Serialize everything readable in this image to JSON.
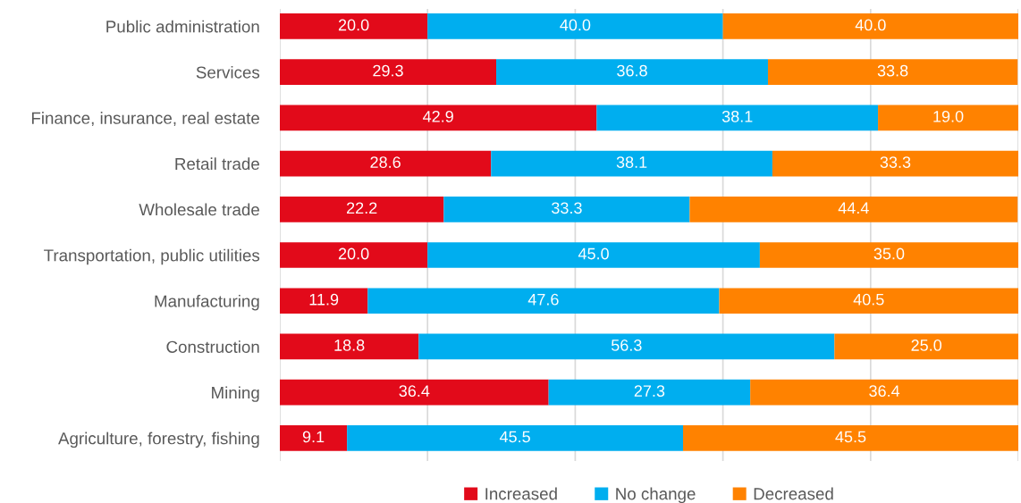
{
  "chart_data": {
    "type": "bar",
    "orientation": "horizontal",
    "stacked": true,
    "categories": [
      "Public administration",
      "Services",
      "Finance, insurance, real estate",
      "Retail trade",
      "Wholesale trade",
      "Transportation, public utilities",
      "Manufacturing",
      "Construction",
      "Mining",
      "Agriculture, forestry, fishing"
    ],
    "series": [
      {
        "name": "Increased",
        "color": "#e20a1a",
        "values": [
          20.0,
          29.3,
          42.9,
          28.6,
          22.2,
          20.0,
          11.9,
          18.8,
          36.4,
          9.1
        ],
        "value_labels": [
          "20.0",
          "29.3",
          "42.9",
          "28.6",
          "22.2",
          "20.0",
          "11.9",
          "18.8",
          "36.4",
          "9.1"
        ]
      },
      {
        "name": "No change",
        "color": "#00aeef",
        "values": [
          40.0,
          36.8,
          38.1,
          38.1,
          33.3,
          45.0,
          47.6,
          56.3,
          27.3,
          45.5
        ],
        "value_labels": [
          "40.0",
          "36.8",
          "38.1",
          "38.1",
          "33.3",
          "45.0",
          "47.6",
          "56.3",
          "27.3",
          "45.5"
        ]
      },
      {
        "name": "Decreased",
        "color": "#ff8200",
        "values": [
          40.0,
          33.8,
          19.0,
          33.3,
          44.4,
          35.0,
          40.5,
          25.0,
          36.4,
          45.5
        ],
        "value_labels": [
          "40.0",
          "33.8",
          "19.0",
          "33.3",
          "44.4",
          "35.0",
          "40.5",
          "25.0",
          "36.4",
          "45.5"
        ]
      }
    ],
    "xlim": [
      0,
      100
    ],
    "xticks": [
      {
        "value": 0,
        "label": null
      },
      {
        "value": 20,
        "label": null
      },
      {
        "value": 40,
        "label": null
      },
      {
        "value": 60,
        "label": null
      },
      {
        "value": 80,
        "label": null
      },
      {
        "value": 100,
        "label": null
      }
    ],
    "grid": "x",
    "tick_labels": "y",
    "legend": "bottom"
  }
}
